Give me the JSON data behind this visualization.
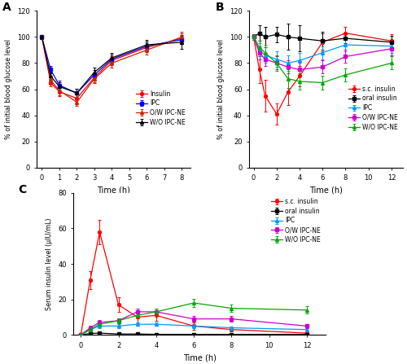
{
  "A": {
    "title": "A",
    "xlabel": "Time (h)",
    "ylabel": "% of initial blood glucose level",
    "ylim": [
      0,
      120
    ],
    "yticks": [
      0,
      20,
      40,
      60,
      80,
      100,
      120
    ],
    "xlim": [
      -0.3,
      8.5
    ],
    "xticks": [
      0,
      1,
      2,
      3,
      4,
      5,
      6,
      7,
      8
    ],
    "legend_loc": "center right",
    "series": [
      {
        "label": "Insulin",
        "color": "#FF0000",
        "marker": "o",
        "x": [
          0,
          0.5,
          1,
          2,
          3,
          4,
          6,
          8
        ],
        "y": [
          100,
          65,
          58,
          53,
          69,
          82,
          92,
          99
        ],
        "yerr": [
          1.5,
          3,
          3.5,
          3.5,
          3.5,
          3.5,
          3.5,
          3.5
        ]
      },
      {
        "label": "IPC",
        "color": "#0000FF",
        "marker": "s",
        "x": [
          0,
          0.5,
          1,
          2,
          3,
          4,
          6,
          8
        ],
        "y": [
          100,
          75,
          63,
          57,
          71,
          83,
          93,
          98
        ],
        "yerr": [
          1.5,
          3,
          3.5,
          3.5,
          3.5,
          3.5,
          3.5,
          3.5
        ]
      },
      {
        "label": "O/W IPC-NE",
        "color": "#CC2200",
        "marker": "^",
        "x": [
          0,
          0.5,
          1,
          2,
          3,
          4,
          6,
          8
        ],
        "y": [
          100,
          67,
          59,
          50,
          68,
          80,
          90,
          100
        ],
        "yerr": [
          1.5,
          3,
          3.5,
          3,
          3.5,
          3.5,
          3.5,
          4
        ]
      },
      {
        "label": "W/O IPC-NE",
        "color": "#000000",
        "marker": "^",
        "x": [
          0,
          0.5,
          1,
          2,
          3,
          4,
          6,
          8
        ],
        "y": [
          100,
          70,
          62,
          57,
          73,
          84,
          94,
          96
        ],
        "yerr": [
          1.5,
          3,
          3.5,
          3.5,
          3.5,
          3.5,
          3.5,
          5
        ]
      }
    ]
  },
  "B": {
    "title": "B",
    "xlabel": "Time (h)",
    "ylabel": "% of initial blood glucose level",
    "ylim": [
      0,
      120
    ],
    "yticks": [
      0,
      20,
      40,
      60,
      80,
      100,
      120
    ],
    "xlim": [
      -0.4,
      13
    ],
    "xticks": [
      0,
      2,
      4,
      6,
      8,
      10,
      12
    ],
    "legend_loc": "center right",
    "series": [
      {
        "label": "s.c. insulin",
        "color": "#FF0000",
        "marker": "o",
        "x": [
          0,
          0.5,
          1,
          2,
          3,
          4,
          6,
          8,
          12
        ],
        "y": [
          100,
          75,
          55,
          41,
          58,
          70,
          96,
          103,
          97
        ],
        "yerr": [
          2,
          10,
          12,
          8,
          10,
          8,
          7,
          5,
          5
        ]
      },
      {
        "label": "oral insulin",
        "color": "#000000",
        "marker": "s",
        "x": [
          0,
          0.5,
          1,
          2,
          3,
          4,
          6,
          8,
          12
        ],
        "y": [
          100,
          103,
          100,
          102,
          100,
          99,
          97,
          99,
          96
        ],
        "yerr": [
          2,
          6,
          8,
          6,
          10,
          10,
          7,
          4,
          5
        ]
      },
      {
        "label": "IPC",
        "color": "#0099FF",
        "marker": "^",
        "x": [
          0,
          0.5,
          1,
          2,
          3,
          4,
          6,
          8,
          12
        ],
        "y": [
          100,
          90,
          86,
          83,
          80,
          82,
          88,
          94,
          93
        ],
        "yerr": [
          2,
          5,
          6,
          6,
          6,
          6,
          5,
          5,
          5
        ]
      },
      {
        "label": "O/W IPC-NE",
        "color": "#CC00CC",
        "marker": "s",
        "x": [
          0,
          0.5,
          1,
          2,
          3,
          4,
          6,
          8,
          12
        ],
        "y": [
          100,
          88,
          83,
          80,
          77,
          75,
          77,
          85,
          91
        ],
        "yerr": [
          2,
          5,
          5,
          5,
          5,
          5,
          5,
          5,
          5
        ]
      },
      {
        "label": "W/O IPC-NE",
        "color": "#00AA00",
        "marker": "^",
        "x": [
          0,
          0.5,
          1,
          2,
          3,
          4,
          6,
          8,
          12
        ],
        "y": [
          100,
          92,
          88,
          80,
          68,
          66,
          65,
          71,
          80
        ],
        "yerr": [
          2,
          5,
          6,
          6,
          7,
          6,
          5,
          5,
          5
        ]
      }
    ]
  },
  "C": {
    "title": "C",
    "xlabel": "Time (h)",
    "ylabel": "Serum insulin level (μIU/mL)",
    "ylim": [
      0,
      80
    ],
    "yticks": [
      0,
      20,
      40,
      60,
      80
    ],
    "xlim": [
      -0.4,
      13
    ],
    "xticks": [
      0,
      2,
      4,
      6,
      8,
      10,
      12
    ],
    "legend_loc": "upper right",
    "series": [
      {
        "label": "s.c. insulin",
        "color": "#FF0000",
        "marker": "o",
        "x": [
          0,
          0.5,
          1,
          2,
          3,
          4,
          6,
          8,
          12
        ],
        "y": [
          0,
          31,
          58,
          17,
          10,
          11,
          5,
          3,
          1
        ],
        "yerr": [
          0.5,
          5,
          7,
          4,
          3,
          3,
          2,
          1,
          0.5
        ]
      },
      {
        "label": "oral insulin",
        "color": "#000000",
        "marker": "s",
        "x": [
          0,
          0.5,
          1,
          2,
          3,
          4,
          6,
          8,
          12
        ],
        "y": [
          0,
          0.8,
          1,
          0.5,
          0.5,
          0.3,
          0.3,
          0.3,
          0.3
        ],
        "yerr": [
          0.2,
          0.3,
          0.3,
          0.3,
          0.3,
          0.2,
          0.2,
          0.2,
          0.2
        ]
      },
      {
        "label": "IPC",
        "color": "#0099FF",
        "marker": "^",
        "x": [
          0,
          0.5,
          1,
          2,
          3,
          4,
          6,
          8,
          12
        ],
        "y": [
          0,
          3,
          5,
          5,
          6,
          6,
          5,
          4,
          3
        ],
        "yerr": [
          0.3,
          0.8,
          1,
          1,
          1,
          1,
          1,
          0.8,
          0.8
        ]
      },
      {
        "label": "O/W IPC-NE",
        "color": "#CC00CC",
        "marker": "s",
        "x": [
          0,
          0.5,
          1,
          2,
          3,
          4,
          6,
          8,
          12
        ],
        "y": [
          0,
          4,
          7,
          8,
          13,
          13,
          9,
          9,
          5
        ],
        "yerr": [
          0.3,
          1,
          1.5,
          1.5,
          2,
          2,
          1.5,
          1.5,
          1
        ]
      },
      {
        "label": "W/O IPC-NE",
        "color": "#00AA00",
        "marker": "^",
        "x": [
          0,
          0.5,
          1,
          2,
          3,
          4,
          6,
          8,
          12
        ],
        "y": [
          0,
          3,
          6,
          8,
          11,
          13,
          18,
          15,
          14
        ],
        "yerr": [
          0.3,
          1,
          1.5,
          1.5,
          1.5,
          2,
          2.5,
          2,
          2
        ]
      }
    ]
  }
}
